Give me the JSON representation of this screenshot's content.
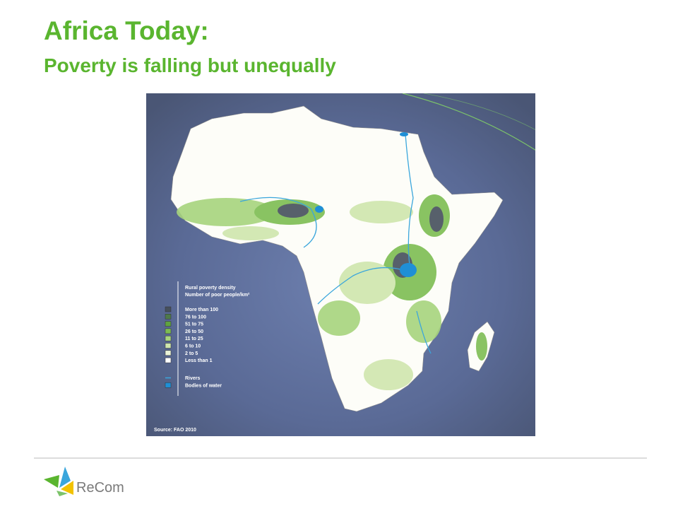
{
  "header": {
    "title": "Africa Today:",
    "subtitle": "Poverty is falling but unequally"
  },
  "map": {
    "legend": {
      "title": "Rural poverty density",
      "subtitle": "Number of poor people/km²",
      "items": [
        {
          "label": "More than 100",
          "color": "#46505c"
        },
        {
          "label": "76 to 100",
          "color": "#4e7a4a"
        },
        {
          "label": "51 to 75",
          "color": "#5fa340"
        },
        {
          "label": "26 to 50",
          "color": "#7dbd52"
        },
        {
          "label": "11 to 25",
          "color": "#a7d47d"
        },
        {
          "label": "6 to 10",
          "color": "#cfe6ad"
        },
        {
          "label": "2 to 5",
          "color": "#eaf3d8"
        },
        {
          "label": "Less than 1",
          "color": "#ffffff"
        }
      ],
      "extras": [
        {
          "label": "Rivers",
          "color": "#3aa6dc"
        },
        {
          "label": "Bodies of water",
          "color": "#1f8fd6"
        }
      ]
    },
    "source": "Source: FAO 2010"
  },
  "footer": {
    "logo": "ReCom"
  }
}
